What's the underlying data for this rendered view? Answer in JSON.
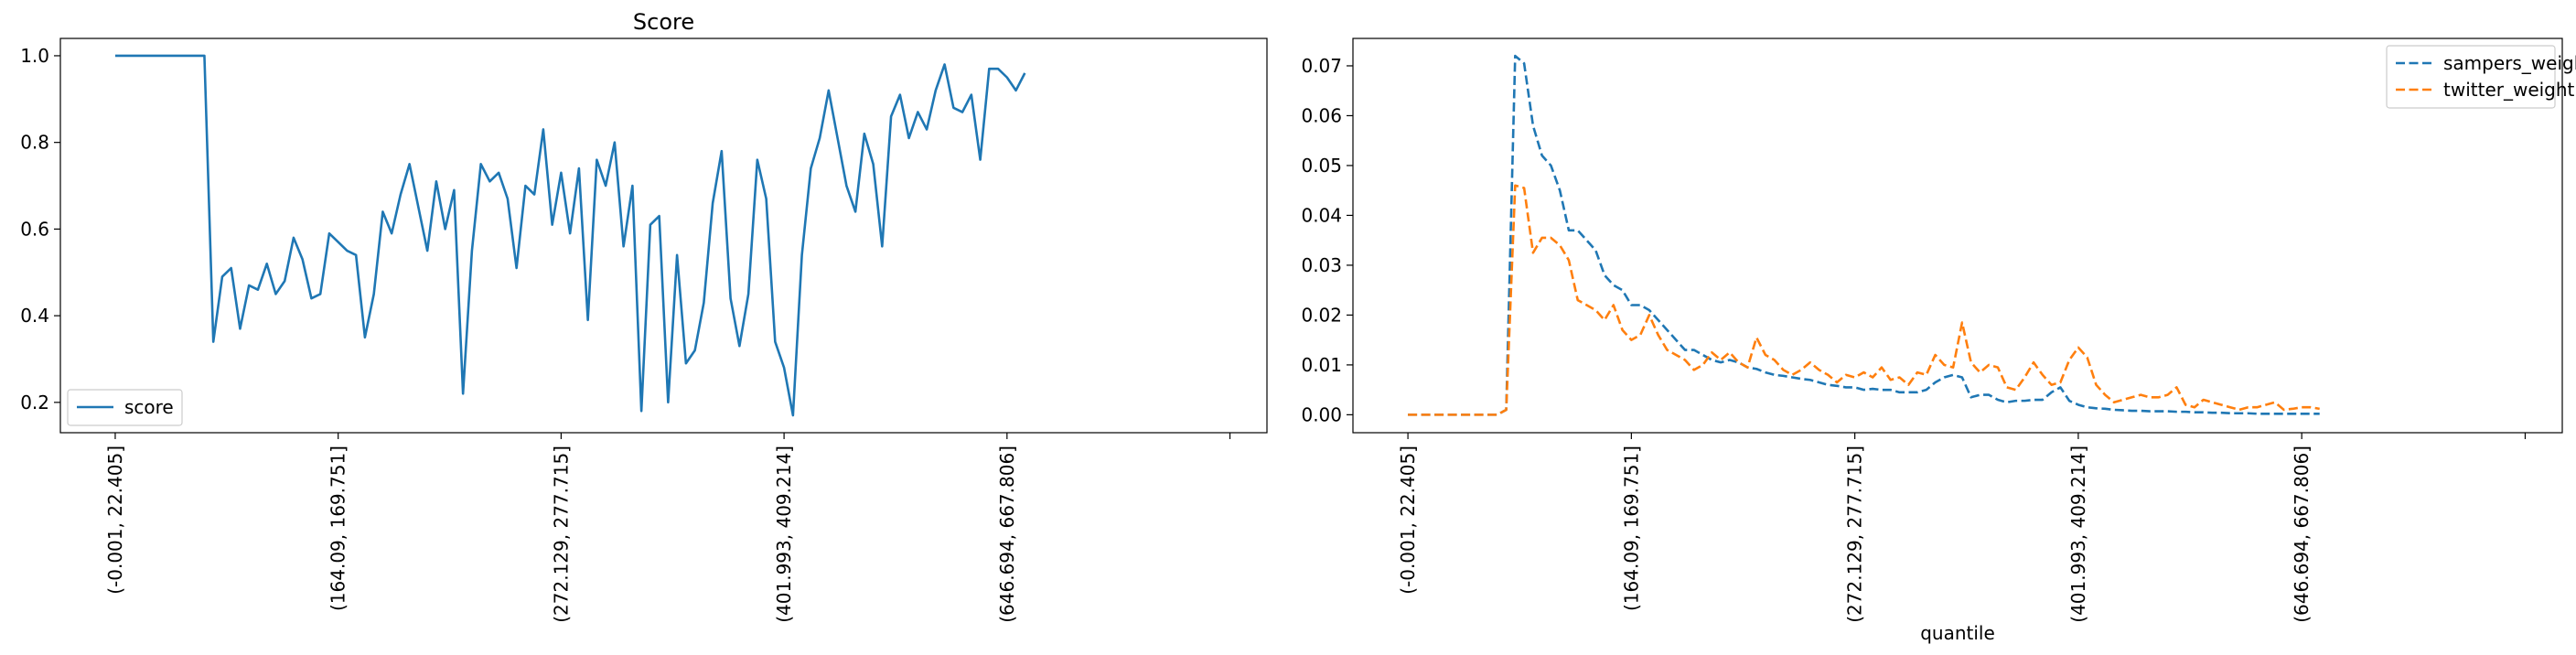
{
  "chart_data": [
    {
      "type": "line",
      "title": "Score",
      "xlabel": "",
      "ylabel": "",
      "x_count": 124,
      "xtick_labels": [
        "(-0.001, 22.405]",
        "(164.09, 169.751]",
        "(272.129, 277.715]",
        "(401.993, 409.214]",
        "(646.694, 667.806]",
        ""
      ],
      "xtick_index": [
        0,
        25,
        50,
        75,
        100,
        125
      ],
      "ylim": [
        0.13,
        1.04
      ],
      "yticks": [
        0.2,
        0.4,
        0.6,
        0.8,
        1.0
      ],
      "ytick_labels": [
        "0.2",
        "0.4",
        "0.6",
        "0.8",
        "1.0"
      ],
      "legend": {
        "placement": "lower left",
        "entries": [
          "score"
        ]
      },
      "series": [
        {
          "name": "score",
          "color": "#1f77b4",
          "style": "solid",
          "values": [
            1.0,
            1.0,
            1.0,
            1.0,
            1.0,
            1.0,
            1.0,
            1.0,
            1.0,
            1.0,
            1.0,
            0.34,
            0.49,
            0.51,
            0.37,
            0.47,
            0.46,
            0.52,
            0.45,
            0.48,
            0.58,
            0.53,
            0.44,
            0.45,
            0.59,
            0.57,
            0.55,
            0.54,
            0.35,
            0.45,
            0.64,
            0.59,
            0.68,
            0.75,
            0.65,
            0.55,
            0.71,
            0.6,
            0.69,
            0.22,
            0.55,
            0.75,
            0.71,
            0.73,
            0.67,
            0.51,
            0.7,
            0.68,
            0.83,
            0.61,
            0.73,
            0.59,
            0.74,
            0.39,
            0.76,
            0.7,
            0.8,
            0.56,
            0.7,
            0.18,
            0.61,
            0.63,
            0.2,
            0.54,
            0.29,
            0.32,
            0.43,
            0.66,
            0.78,
            0.44,
            0.33,
            0.45,
            0.76,
            0.67,
            0.34,
            0.28,
            0.17,
            0.54,
            0.74,
            0.81,
            0.92,
            0.81,
            0.7,
            0.64,
            0.82,
            0.75,
            0.56,
            0.86,
            0.91,
            0.81,
            0.87,
            0.83,
            0.92,
            0.98,
            0.88,
            0.87,
            0.91,
            0.76,
            0.97,
            0.97,
            0.95,
            0.92,
            0.96
          ]
        }
      ]
    },
    {
      "type": "line",
      "title": "",
      "xlabel": "quantile",
      "ylabel": "",
      "x_count": 124,
      "xtick_labels": [
        "(-0.001, 22.405]",
        "(164.09, 169.751]",
        "(272.129, 277.715]",
        "(401.993, 409.214]",
        "(646.694, 667.806]",
        ""
      ],
      "xtick_index": [
        0,
        25,
        50,
        75,
        100,
        125
      ],
      "ylim": [
        -0.0036,
        0.0755
      ],
      "yticks": [
        0.0,
        0.01,
        0.02,
        0.03,
        0.04,
        0.05,
        0.06,
        0.07
      ],
      "ytick_labels": [
        "0.00",
        "0.01",
        "0.02",
        "0.03",
        "0.04",
        "0.05",
        "0.06",
        "0.07"
      ],
      "legend": {
        "placement": "upper right",
        "entries": [
          "sampers_weight",
          "twitter_weight"
        ]
      },
      "series": [
        {
          "name": "sampers_weight",
          "color": "#1f77b4",
          "style": "dashed",
          "values": [
            0,
            0,
            0,
            0,
            0,
            0,
            0,
            0,
            0,
            0,
            0,
            0.001,
            0.072,
            0.0705,
            0.058,
            0.052,
            0.05,
            0.045,
            0.037,
            0.037,
            0.035,
            0.033,
            0.028,
            0.026,
            0.025,
            0.022,
            0.022,
            0.021,
            0.019,
            0.017,
            0.015,
            0.013,
            0.013,
            0.012,
            0.011,
            0.0105,
            0.011,
            0.0105,
            0.0095,
            0.0092,
            0.0085,
            0.008,
            0.0078,
            0.0075,
            0.0072,
            0.007,
            0.0065,
            0.006,
            0.0058,
            0.0055,
            0.0055,
            0.005,
            0.0052,
            0.005,
            0.005,
            0.0045,
            0.0045,
            0.0045,
            0.005,
            0.0065,
            0.0075,
            0.008,
            0.0075,
            0.0035,
            0.004,
            0.004,
            0.003,
            0.0025,
            0.0028,
            0.0028,
            0.003,
            0.003,
            0.0045,
            0.0055,
            0.0028,
            0.002,
            0.0015,
            0.0013,
            0.0012,
            0.001,
            0.0009,
            0.0008,
            0.0008,
            0.0007,
            0.0007,
            0.0007,
            0.0006,
            0.0006,
            0.0005,
            0.0005,
            0.0004,
            0.0004,
            0.0003,
            0.0003,
            0.0003,
            0.0002,
            0.0002,
            0.0002,
            0.0002,
            0.0002,
            0.0002,
            0.0002,
            0.0002
          ]
        },
        {
          "name": "twitter_weight",
          "color": "#ff7f0e",
          "style": "dashed",
          "values": [
            0,
            0,
            0,
            0,
            0,
            0,
            0,
            0,
            0,
            0,
            0,
            0.001,
            0.046,
            0.0455,
            0.0325,
            0.0355,
            0.0355,
            0.034,
            0.031,
            0.023,
            0.022,
            0.021,
            0.019,
            0.022,
            0.017,
            0.015,
            0.016,
            0.02,
            0.016,
            0.013,
            0.012,
            0.011,
            0.009,
            0.01,
            0.0125,
            0.011,
            0.0125,
            0.0105,
            0.0095,
            0.0155,
            0.012,
            0.011,
            0.009,
            0.008,
            0.009,
            0.0105,
            0.009,
            0.008,
            0.0065,
            0.008,
            0.0075,
            0.0085,
            0.0075,
            0.0095,
            0.007,
            0.0075,
            0.006,
            0.0085,
            0.008,
            0.012,
            0.01,
            0.0095,
            0.0185,
            0.0105,
            0.0085,
            0.01,
            0.0095,
            0.0055,
            0.005,
            0.0075,
            0.0105,
            0.008,
            0.006,
            0.0065,
            0.011,
            0.0135,
            0.0115,
            0.006,
            0.004,
            0.0025,
            0.003,
            0.0035,
            0.004,
            0.0035,
            0.0035,
            0.004,
            0.0055,
            0.002,
            0.0015,
            0.003,
            0.0025,
            0.002,
            0.0015,
            0.001,
            0.0015,
            0.0015,
            0.002,
            0.0025,
            0.001,
            0.0012,
            0.0015,
            0.0015,
            0.0012
          ]
        }
      ]
    }
  ]
}
